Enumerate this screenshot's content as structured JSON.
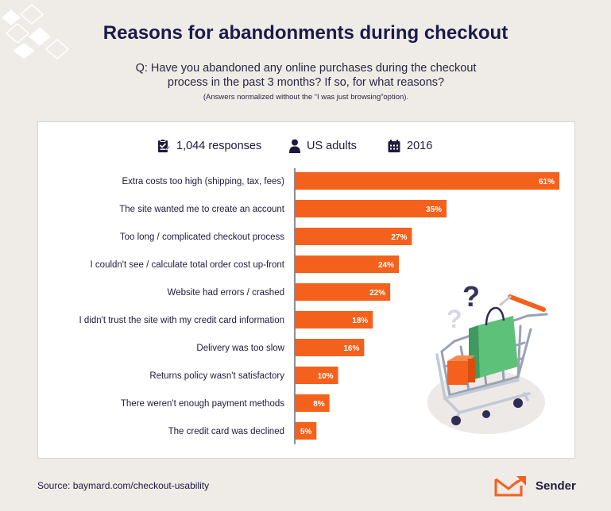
{
  "title": "Reasons for abandonments during checkout",
  "question": "Q: Have you abandoned any online purchases during the checkout process in the past 3 months? If so, for what reasons?",
  "note": "(Answers normalized without the “I was just browsing”option).",
  "meta": {
    "responses": "1,044 responses",
    "audience": "US adults",
    "year": "2016"
  },
  "source": "Source: baymard.com/checkout-usability",
  "brand": "Sender",
  "colors": {
    "bar": "#f4611c",
    "accent": "#f4611c",
    "background": "#efebe7",
    "panel": "#ffffff"
  },
  "icons": [
    "clipboard-icon",
    "person-icon",
    "calendar-icon",
    "shopping-cart-icon",
    "sender-logo-icon"
  ],
  "chart_data": {
    "type": "bar",
    "orientation": "horizontal",
    "categories": [
      "Extra costs too high (shipping, tax, fees)",
      "The site wanted me to create an account",
      "Too long / complicated checkout process",
      "I couldn't see / calculate total order cost up-front",
      "Website had errors / crashed",
      "I didn't trust the site with my credit card information",
      "Delivery was too slow",
      "Returns policy wasn't satisfactory",
      "There weren't enough payment methods",
      "The credit card was declined"
    ],
    "values": [
      61,
      35,
      27,
      24,
      22,
      18,
      16,
      10,
      8,
      5
    ],
    "value_labels": [
      "61%",
      "35%",
      "27%",
      "24%",
      "22%",
      "18%",
      "16%",
      "10%",
      "8%",
      "5%"
    ],
    "xlim": [
      0,
      61
    ],
    "grid": false,
    "legend": "none"
  }
}
